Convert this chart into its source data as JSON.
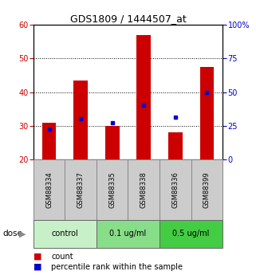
{
  "title": "GDS1809 / 1444507_at",
  "samples": [
    "GSM88334",
    "GSM88337",
    "GSM88335",
    "GSM88338",
    "GSM88336",
    "GSM88399"
  ],
  "red_values": [
    31.0,
    43.5,
    30.0,
    57.0,
    28.0,
    47.5
  ],
  "blue_values": [
    29.0,
    32.0,
    31.0,
    36.0,
    32.5,
    40.0
  ],
  "ylim_left": [
    20,
    60
  ],
  "ylim_right": [
    0,
    100
  ],
  "yticks_left": [
    20,
    30,
    40,
    50,
    60
  ],
  "yticks_right": [
    0,
    25,
    50,
    75,
    100
  ],
  "ytick_labels_right": [
    "0",
    "25",
    "50",
    "75",
    "100%"
  ],
  "gridlines": [
    30,
    40,
    50
  ],
  "dose_groups": [
    {
      "label": "control",
      "start": 0,
      "end": 2,
      "color": "#c8f0c8"
    },
    {
      "label": "0.1 ug/ml",
      "start": 2,
      "end": 4,
      "color": "#88dd88"
    },
    {
      "label": "0.5 ug/ml",
      "start": 4,
      "end": 6,
      "color": "#44cc44"
    }
  ],
  "dose_label": "dose",
  "bar_color": "#cc0000",
  "blue_color": "#0000cc",
  "bar_width": 0.45,
  "bg_color": "#ffffff",
  "left_tick_color": "#cc0000",
  "right_tick_color": "#0000cc",
  "sample_box_color": "#cccccc",
  "title_fontsize": 9,
  "tick_fontsize": 7,
  "label_fontsize": 7,
  "dose_fontsize": 7
}
